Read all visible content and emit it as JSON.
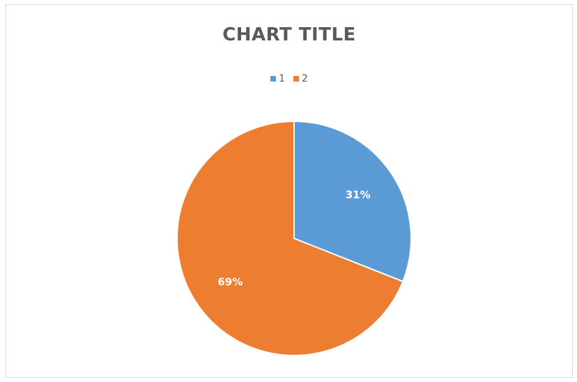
{
  "chart_data": {
    "type": "pie",
    "title": "CHART TITLE",
    "legend_position": "top",
    "categories": [
      "1",
      "2"
    ],
    "values": [
      31,
      69
    ],
    "labels": [
      "31%",
      "69%"
    ],
    "colors": [
      "#5B9BD5",
      "#ED7D31"
    ]
  }
}
